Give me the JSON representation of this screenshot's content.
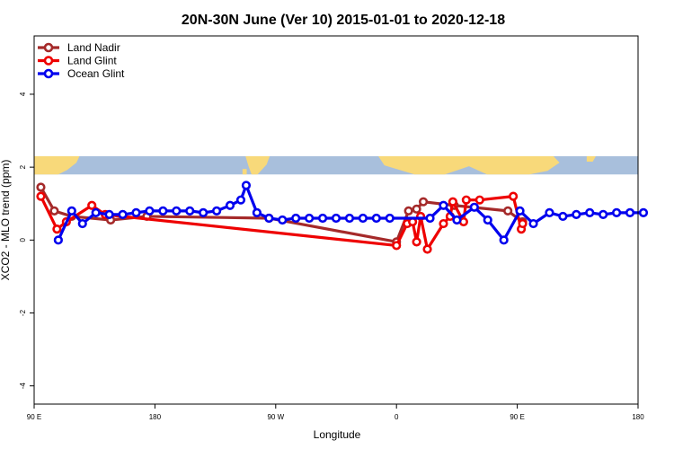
{
  "chart_data": {
    "type": "line",
    "title": "20N-30N June (Ver 10)   2015-01-01 to 2020-12-18",
    "xlabel": "Longitude",
    "ylabel": "XCO2 - MLO trend (ppm)",
    "xlim": [
      90,
      540
    ],
    "ylim": [
      -4.5,
      5.6
    ],
    "x_ticks": [
      {
        "value": 90,
        "label": "90 E"
      },
      {
        "value": 180,
        "label": "180"
      },
      {
        "value": 270,
        "label": "90 W"
      },
      {
        "value": 360,
        "label": "0"
      },
      {
        "value": 450,
        "label": "90 E"
      },
      {
        "value": 540,
        "label": "180"
      }
    ],
    "y_ticks": [
      {
        "value": -4,
        "label": "-4"
      },
      {
        "value": -2,
        "label": "-2"
      },
      {
        "value": 0,
        "label": "0"
      },
      {
        "value": 2,
        "label": "2"
      },
      {
        "value": 4,
        "label": "4"
      }
    ],
    "map_band": {
      "y_min": 1.8,
      "y_max": 2.3,
      "ocean_color": "#a8bfdc",
      "land_color": "#f8d97a"
    },
    "legend_position": "top-left",
    "series": [
      {
        "name": "Land Nadir",
        "color": "#a52a2a",
        "x": [
          95,
          105,
          118,
          147,
          174,
          265,
          360,
          369,
          375,
          380,
          403,
          443,
          454
        ],
        "y": [
          1.45,
          0.8,
          0.65,
          0.55,
          0.65,
          0.6,
          -0.05,
          0.8,
          0.85,
          1.05,
          0.95,
          0.8,
          0.5
        ]
      },
      {
        "name": "Land Glint",
        "color": "#ee0000",
        "x": [
          95,
          107,
          114,
          133,
          143,
          360,
          368,
          372,
          375,
          378,
          383,
          395,
          400,
          402,
          410,
          412,
          422,
          447,
          453,
          454
        ],
        "y": [
          1.2,
          0.3,
          0.5,
          0.95,
          0.7,
          -0.15,
          0.45,
          0.5,
          -0.05,
          0.65,
          -0.25,
          0.45,
          0.65,
          1.05,
          0.5,
          1.1,
          1.1,
          1.2,
          0.3,
          0.45
        ]
      },
      {
        "name": "Ocean Glint",
        "color": "#0000ee",
        "x": [
          108,
          118,
          126,
          136,
          146,
          156,
          166,
          176,
          186,
          196,
          206,
          216,
          226,
          236,
          244,
          248,
          256,
          265,
          275,
          285,
          295,
          305,
          315,
          325,
          335,
          345,
          355,
          385,
          395,
          405,
          418,
          428,
          440,
          452,
          462,
          474,
          484,
          494,
          504,
          514,
          524,
          534,
          544
        ],
        "y": [
          0.0,
          0.8,
          0.45,
          0.75,
          0.7,
          0.7,
          0.75,
          0.8,
          0.8,
          0.8,
          0.8,
          0.75,
          0.8,
          0.95,
          1.1,
          1.5,
          0.75,
          0.6,
          0.55,
          0.6,
          0.6,
          0.6,
          0.6,
          0.6,
          0.6,
          0.6,
          0.6,
          0.6,
          0.95,
          0.55,
          0.9,
          0.55,
          0.0,
          0.8,
          0.45,
          0.75,
          0.65,
          0.7,
          0.75,
          0.7,
          0.75,
          0.75,
          0.75
        ]
      }
    ]
  }
}
